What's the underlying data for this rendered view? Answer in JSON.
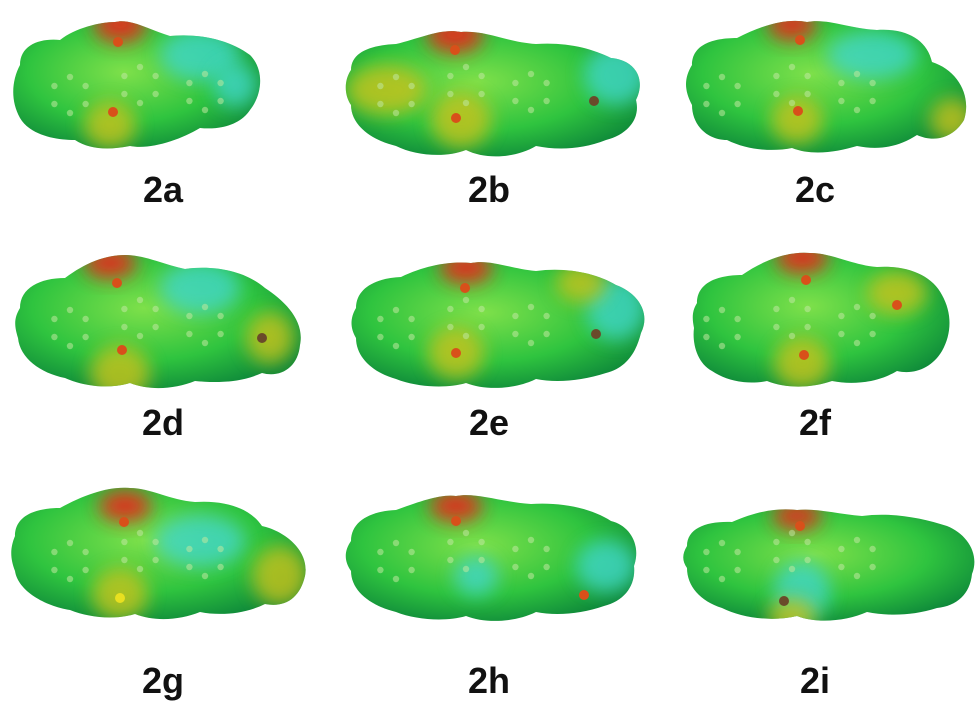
{
  "figure": {
    "panels": [
      {
        "label": "2a"
      },
      {
        "label": "2b"
      },
      {
        "label": "2c"
      },
      {
        "label": "2d"
      },
      {
        "label": "2e"
      },
      {
        "label": "2f"
      },
      {
        "label": "2g"
      },
      {
        "label": "2h"
      },
      {
        "label": "2i"
      }
    ]
  },
  "colors": {
    "surface_base": "#2fc43f",
    "surface_light": "#7ee04a",
    "surface_edge": "#0f8a3a",
    "negative_region": "#e0301a",
    "mild_negative": "#c9c21a",
    "positive_region": "#3fd6c9",
    "atom": "#bfe8a0",
    "atom_oxygen": "#d8501a",
    "atom_sulfur": "#e8e020",
    "atom_other": "#6a4a2a"
  }
}
